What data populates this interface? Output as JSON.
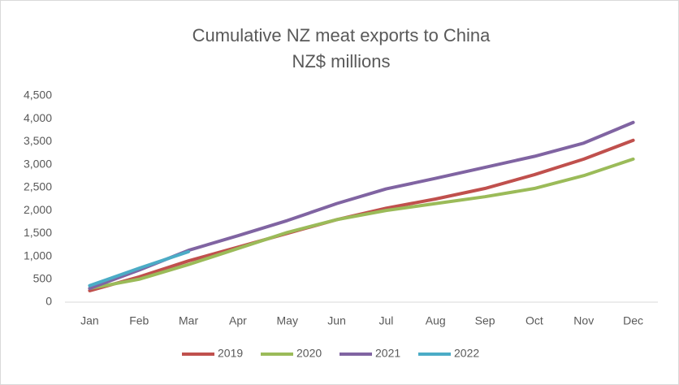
{
  "chart_data": {
    "type": "line",
    "title": "Cumulative NZ meat exports to China",
    "subtitle": "NZ$ millions",
    "categories": [
      "Jan",
      "Feb",
      "Mar",
      "Apr",
      "May",
      "Jun",
      "Jul",
      "Aug",
      "Sep",
      "Oct",
      "Nov",
      "Dec"
    ],
    "series": [
      {
        "name": "2019",
        "color": "#c0504d",
        "values": [
          250,
          550,
          900,
          1200,
          1500,
          1800,
          2050,
          2250,
          2480,
          2780,
          3120,
          3530
        ]
      },
      {
        "name": "2020",
        "color": "#9bbb59",
        "values": [
          300,
          500,
          820,
          1170,
          1520,
          1800,
          2000,
          2150,
          2300,
          2480,
          2760,
          3120
        ]
      },
      {
        "name": "2021",
        "color": "#8064a2",
        "values": [
          300,
          700,
          1130,
          1450,
          1780,
          2150,
          2470,
          2700,
          2940,
          3180,
          3470,
          3920
        ]
      },
      {
        "name": "2022",
        "color": "#4bacc6",
        "values": [
          360,
          740,
          1100,
          null,
          null,
          null,
          null,
          null,
          null,
          null,
          null,
          null
        ]
      }
    ],
    "ylim": [
      0,
      4500
    ],
    "yticks": [
      0,
      500,
      {
        "value": 1000,
        "label": "1,000"
      },
      {
        "value": 1500,
        "label": "1,500"
      },
      {
        "value": 2000,
        "label": "2,000"
      },
      {
        "value": 2500,
        "label": "2,500"
      },
      {
        "value": 3000,
        "label": "3,000"
      },
      {
        "value": 3500,
        "label": "3,500"
      },
      {
        "value": 4000,
        "label": "4,000"
      },
      {
        "value": 4500,
        "label": "4,500"
      }
    ],
    "grid": false,
    "legend": "bottom"
  }
}
